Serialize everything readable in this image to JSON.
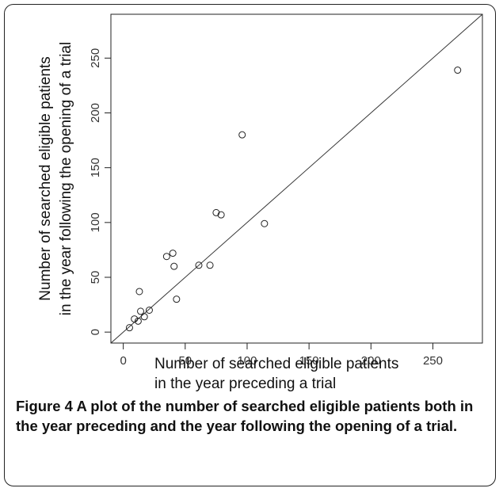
{
  "caption": {
    "label": "Figure 4",
    "text": "A plot of the number of searched eligible patients both in the year preceding and the year following the opening of a trial."
  },
  "chart_data": {
    "type": "scatter",
    "title": "",
    "xlabel_lines": [
      "Number of searched eligible patients",
      "in the year preceding a trial"
    ],
    "ylabel_lines": [
      "Number of searched eligible patients",
      "in the year following the opening of a trial"
    ],
    "xlim": [
      -10,
      290
    ],
    "ylim": [
      -10,
      290
    ],
    "xticks": [
      0,
      50,
      100,
      150,
      200,
      250
    ],
    "yticks": [
      0,
      50,
      100,
      150,
      200,
      250
    ],
    "grid": false,
    "reference_line": {
      "type": "identity",
      "slope": 1,
      "intercept": 0
    },
    "marker": "open-circle",
    "points": [
      {
        "x": 5,
        "y": 4
      },
      {
        "x": 9,
        "y": 12
      },
      {
        "x": 12,
        "y": 10
      },
      {
        "x": 14,
        "y": 19
      },
      {
        "x": 17,
        "y": 14
      },
      {
        "x": 21,
        "y": 20
      },
      {
        "x": 13,
        "y": 37
      },
      {
        "x": 35,
        "y": 69
      },
      {
        "x": 40,
        "y": 72
      },
      {
        "x": 41,
        "y": 60
      },
      {
        "x": 43,
        "y": 30
      },
      {
        "x": 61,
        "y": 61
      },
      {
        "x": 70,
        "y": 61
      },
      {
        "x": 75,
        "y": 109
      },
      {
        "x": 79,
        "y": 107
      },
      {
        "x": 96,
        "y": 180
      },
      {
        "x": 114,
        "y": 99
      },
      {
        "x": 270,
        "y": 239
      }
    ]
  }
}
